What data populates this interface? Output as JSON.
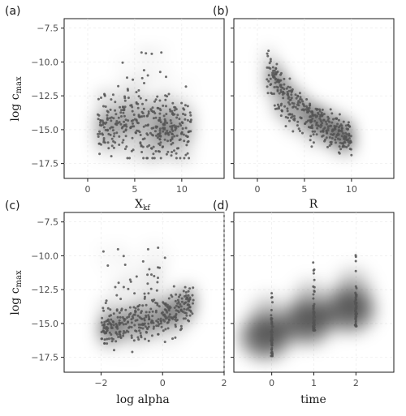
{
  "chart_data": [
    {
      "panel_label": "(a)",
      "type": "scatter",
      "xlabel": "X_kf",
      "ylabel": "log c_max",
      "xlim": [
        -2.5,
        14.5
      ],
      "ylim": [
        -18.6,
        -6.8
      ],
      "xticks": [
        0,
        5,
        10
      ],
      "yticks": [
        -7.5,
        -10.0,
        -12.5,
        -15.0,
        -17.5
      ],
      "pattern": "uniform",
      "n_points": 380,
      "x_range": [
        1.0,
        11.0
      ],
      "center": -14.9,
      "spread": 1.1,
      "outlier_high": -9.3,
      "outlier_low": -17.1
    },
    {
      "panel_label": "(b)",
      "type": "scatter",
      "xlabel": "R",
      "ylabel": "",
      "xlim": [
        -2.5,
        14.5
      ],
      "ylim": [
        -18.6,
        -6.8
      ],
      "xticks": [
        0,
        5,
        10
      ],
      "yticks": [],
      "pattern": "decay",
      "n_points": 380,
      "x_range": [
        1.0,
        10.0
      ],
      "start": -9.5,
      "end": -15.5,
      "spread": 1.0
    },
    {
      "panel_label": "(c)",
      "type": "scatter",
      "xlabel": "log alpha",
      "ylabel": "log c_max",
      "xlim": [
        -3.2,
        2.0
      ],
      "ylim": [
        -18.6,
        -6.8
      ],
      "xticks": [
        -2,
        0,
        2
      ],
      "yticks": [
        -7.5,
        -10.0,
        -12.5,
        -15.0,
        -17.5
      ],
      "pattern": "rising",
      "n_points": 380,
      "x_range": [
        -2.0,
        1.0
      ],
      "base": -15.2,
      "rise": 1.8,
      "outlier_high": -9.3
    },
    {
      "panel_label": "(d)",
      "type": "scatter",
      "xlabel": "time",
      "ylabel": "",
      "xlim": [
        -0.9,
        2.9
      ],
      "ylim": [
        -18.6,
        -6.8
      ],
      "xticks": [
        0,
        1,
        2
      ],
      "yticks": [],
      "pattern": "columns",
      "x_values": [
        0,
        1,
        2
      ],
      "column_ranges": [
        [
          -17.4,
          -12.7
        ],
        [
          -15.5,
          -10.3
        ],
        [
          -15.2,
          -9.3
        ]
      ],
      "column_centers": [
        -16.0,
        -14.9,
        -14.0
      ]
    }
  ],
  "panels": {
    "a": {
      "label": "(a)",
      "xlabel": "X",
      "xlabel_sub": "kf",
      "ylabel": "log c",
      "ylabel_sub": "max"
    },
    "b": {
      "label": "(b)",
      "xlabel": "R"
    },
    "c": {
      "label": "(c)",
      "xlabel": "log alpha",
      "ylabel": "log c",
      "ylabel_sub": "max"
    },
    "d": {
      "label": "(d)",
      "xlabel": "time"
    }
  },
  "tick_labels": {
    "y": [
      "−7.5",
      "−10.0",
      "−12.5",
      "−15.0",
      "−17.5"
    ],
    "x_a": [
      "0",
      "5",
      "10"
    ],
    "x_b": [
      "0",
      "5",
      "10"
    ],
    "x_c": [
      "−2",
      "0",
      "2"
    ],
    "x_d": [
      "0",
      "1",
      "2"
    ]
  },
  "colors": {
    "points": "#555555",
    "density": "#000000",
    "frame": "#1a1a1a"
  }
}
